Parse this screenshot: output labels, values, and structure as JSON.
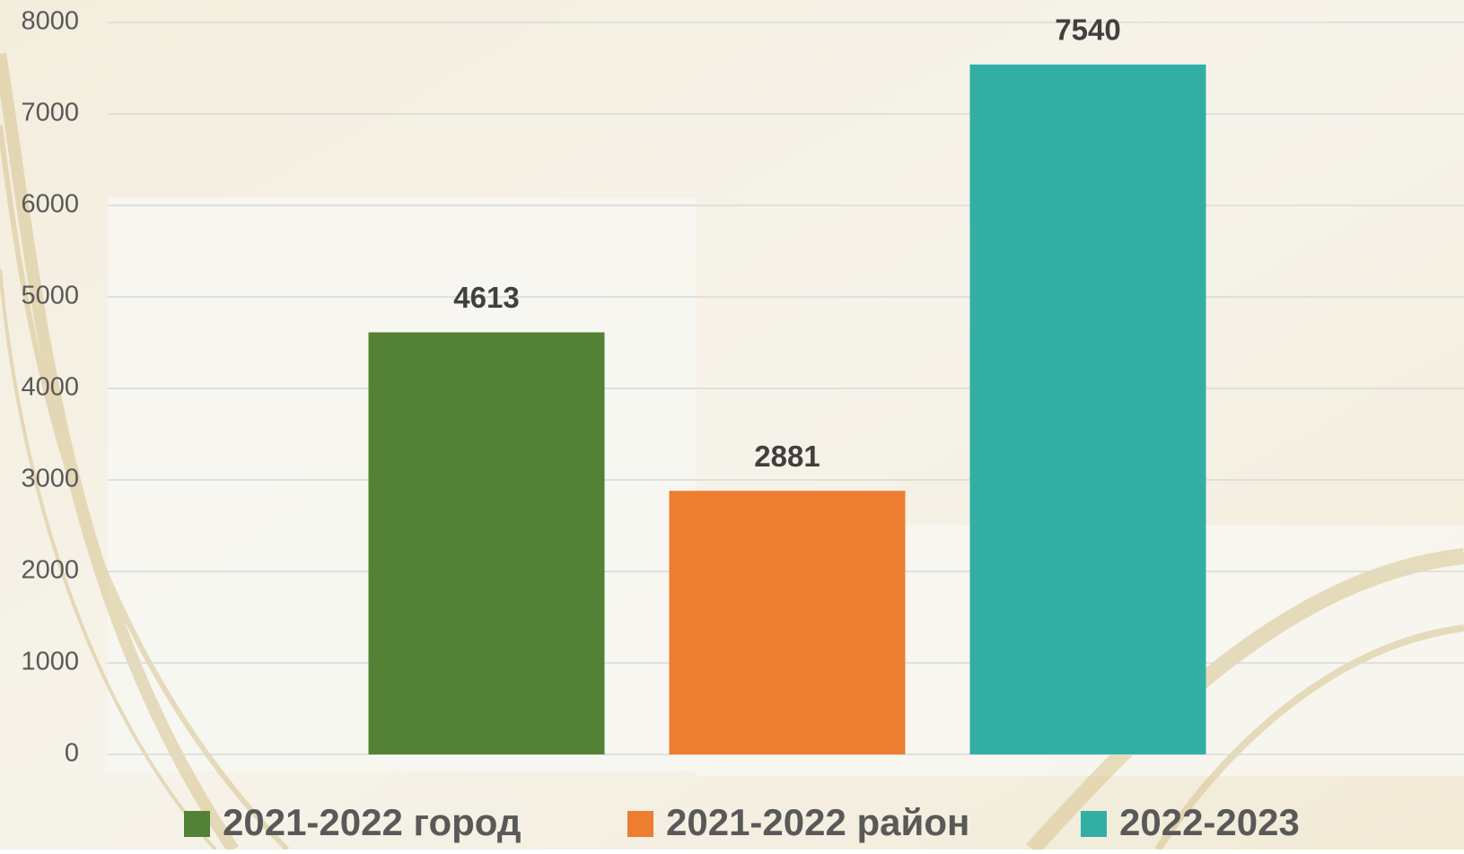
{
  "chart_data": {
    "type": "bar",
    "series": [
      {
        "name": "2021-2022 город",
        "color": "#538135",
        "values": [
          4613
        ]
      },
      {
        "name": "2021-2022 район",
        "color": "#ed7d31",
        "values": [
          2881
        ]
      },
      {
        "name": "2022-2023",
        "color": "#33aea5",
        "values": [
          7540
        ]
      }
    ],
    "ylim": [
      0,
      8000
    ],
    "yticks": [
      0,
      1000,
      2000,
      3000,
      4000,
      5000,
      6000,
      7000,
      8000
    ],
    "grid": true,
    "legend": "bottom"
  }
}
